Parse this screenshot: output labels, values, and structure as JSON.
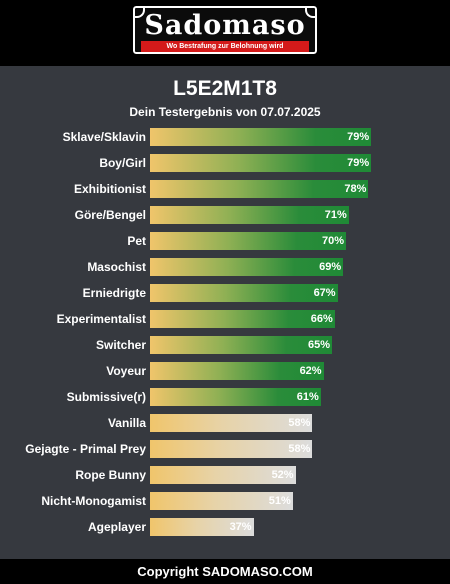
{
  "header": {
    "logo_text": "Sadomaso",
    "tagline": "Wo Bestrafung zur Belohnung wird"
  },
  "result": {
    "title": "L5E2M1T8",
    "subtitle": "Dein Testergebnis von 07.07.2025"
  },
  "colors": {
    "background": "#36393f",
    "bar_high_end": "#1f8a36",
    "bar_start": "#f0c56b",
    "bar_low_end": "#dcdcdc"
  },
  "chart_data": {
    "type": "bar",
    "orientation": "horizontal",
    "xlim": [
      0,
      100
    ],
    "categories": [
      "Sklave/Sklavin",
      "Boy/Girl",
      "Exhibitionist",
      "Göre/Bengel",
      "Pet",
      "Masochist",
      "Erniedrigte",
      "Experimentalist",
      "Switcher",
      "Voyeur",
      "Submissive(r)",
      "Vanilla",
      "Gejagte - Primal Prey",
      "Rope Bunny",
      "Nicht-Monogamist",
      "Ageplayer"
    ],
    "values": [
      79,
      79,
      78,
      71,
      70,
      69,
      67,
      66,
      65,
      62,
      61,
      58,
      58,
      52,
      51,
      37
    ],
    "value_labels": [
      "79%",
      "79%",
      "78%",
      "71%",
      "70%",
      "69%",
      "67%",
      "66%",
      "65%",
      "62%",
      "61%",
      "58%",
      "58%",
      "52%",
      "51%",
      "37%"
    ]
  },
  "footer": {
    "copyright": "Copyright SADOMASO.COM"
  }
}
